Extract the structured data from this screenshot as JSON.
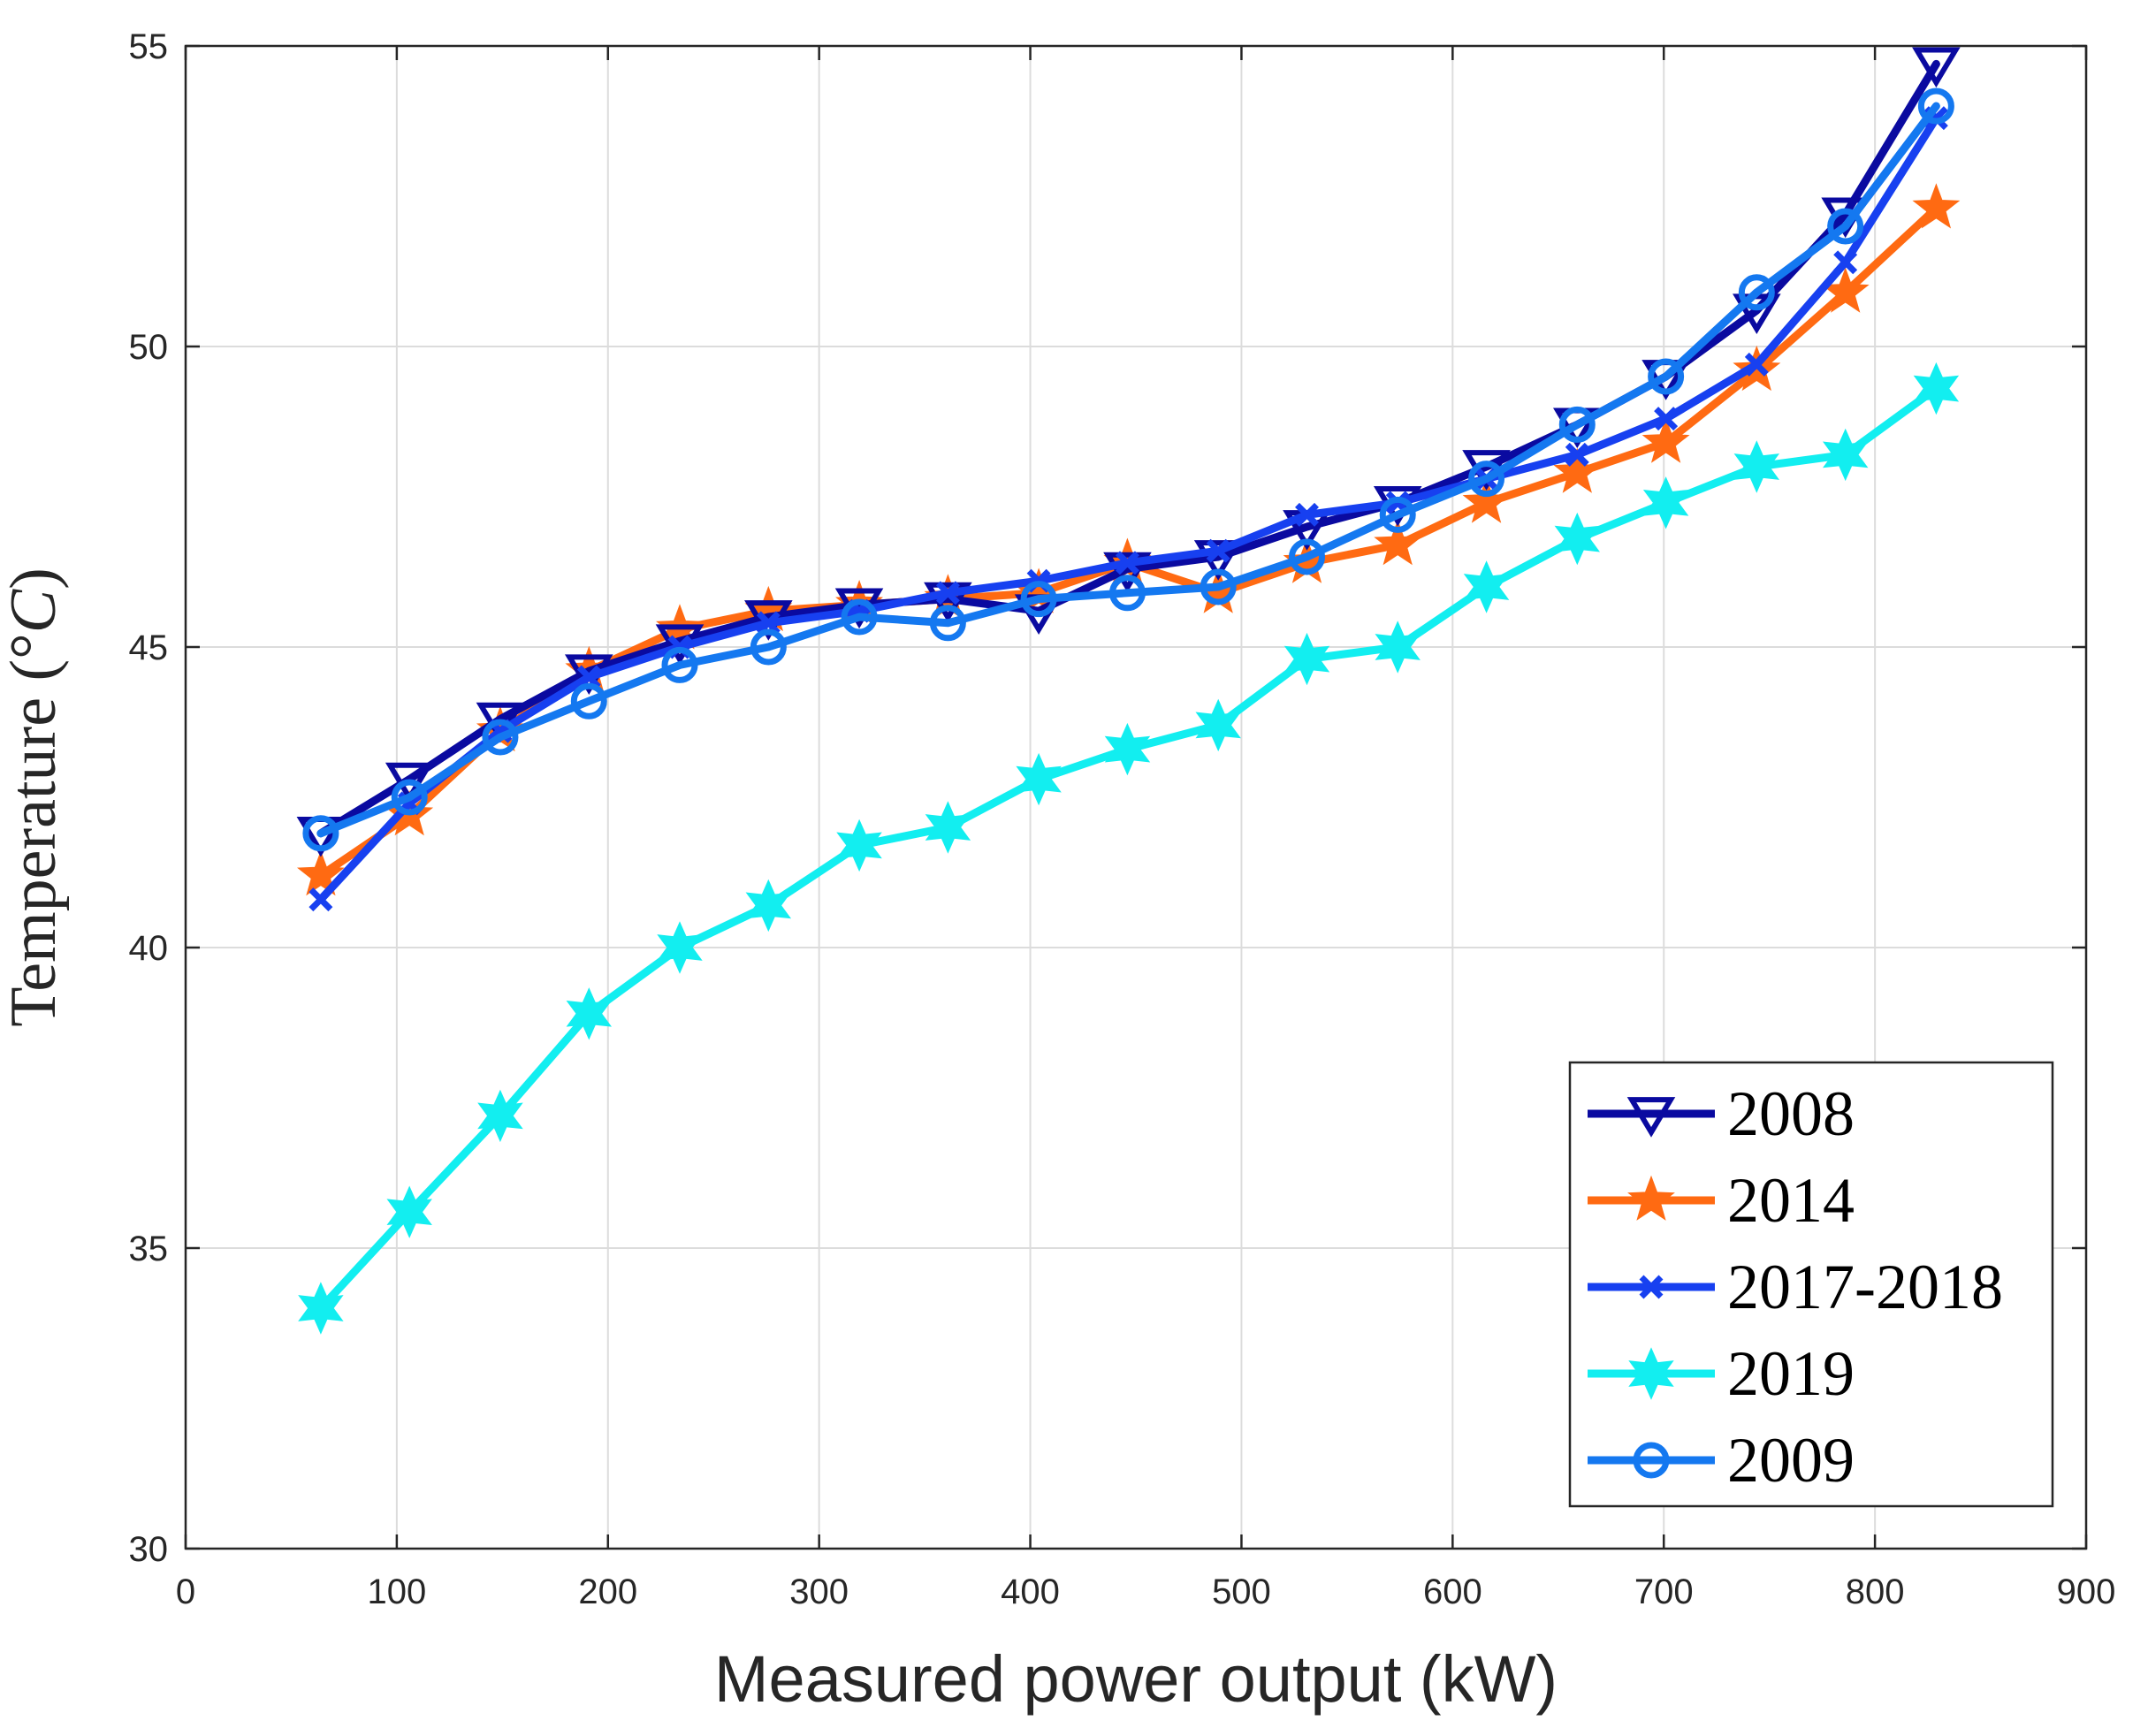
{
  "chart_data": {
    "type": "line",
    "title": "",
    "xlabel": "Measured power output (kW)",
    "ylabel_prefix": "Temperature (",
    "ylabel_unit": "°",
    "ylabel_symbol": "C",
    "ylabel_suffix": ")",
    "xlim": [
      0,
      900
    ],
    "ylim": [
      30,
      55
    ],
    "xticks": [
      0,
      100,
      200,
      300,
      400,
      500,
      600,
      700,
      800,
      900
    ],
    "yticks": [
      30,
      35,
      40,
      45,
      50,
      55
    ],
    "grid": true,
    "legend_position": "bottom-right",
    "x": [
      64,
      106,
      149,
      191,
      234,
      276,
      319,
      361,
      404,
      446,
      489,
      531,
      574,
      616,
      659,
      701,
      744,
      786,
      829
    ],
    "series": [
      {
        "name": "2008",
        "color": "#0a0aa0",
        "marker": "triangle-down",
        "values": [
          41.9,
          42.8,
          43.8,
          44.6,
          45.1,
          45.5,
          45.7,
          45.8,
          45.6,
          46.3,
          46.5,
          47.0,
          47.4,
          48.0,
          48.7,
          49.5,
          50.6,
          52.2,
          54.7
        ]
      },
      {
        "name": "2014",
        "color": "#ff6a12",
        "marker": "star",
        "values": [
          41.2,
          42.2,
          43.6,
          44.6,
          45.3,
          45.6,
          45.7,
          45.8,
          45.9,
          46.4,
          45.9,
          46.4,
          46.7,
          47.4,
          47.9,
          48.4,
          49.6,
          50.9,
          52.3
        ]
      },
      {
        "name": "2017-2018",
        "color": "#1740f0",
        "marker": "x",
        "values": [
          40.8,
          42.4,
          43.6,
          44.5,
          45.0,
          45.4,
          45.6,
          45.9,
          46.1,
          46.4,
          46.6,
          47.2,
          47.4,
          47.8,
          48.2,
          48.8,
          49.7,
          51.4,
          53.8
        ]
      },
      {
        "name": "2019",
        "color": "#12eef0",
        "marker": "hexagram",
        "values": [
          34.0,
          35.6,
          37.2,
          38.9,
          40.0,
          40.7,
          41.7,
          42.0,
          42.8,
          43.3,
          43.7,
          44.8,
          45.0,
          46.0,
          46.8,
          47.4,
          48.0,
          48.2,
          49.3
        ]
      },
      {
        "name": "2009",
        "color": "#1478f0",
        "marker": "circle",
        "values": [
          41.9,
          42.5,
          43.5,
          44.1,
          44.7,
          45.0,
          45.5,
          45.4,
          45.8,
          45.9,
          46.0,
          46.5,
          47.2,
          47.8,
          48.7,
          49.5,
          50.9,
          52.0,
          54.0
        ]
      }
    ]
  }
}
